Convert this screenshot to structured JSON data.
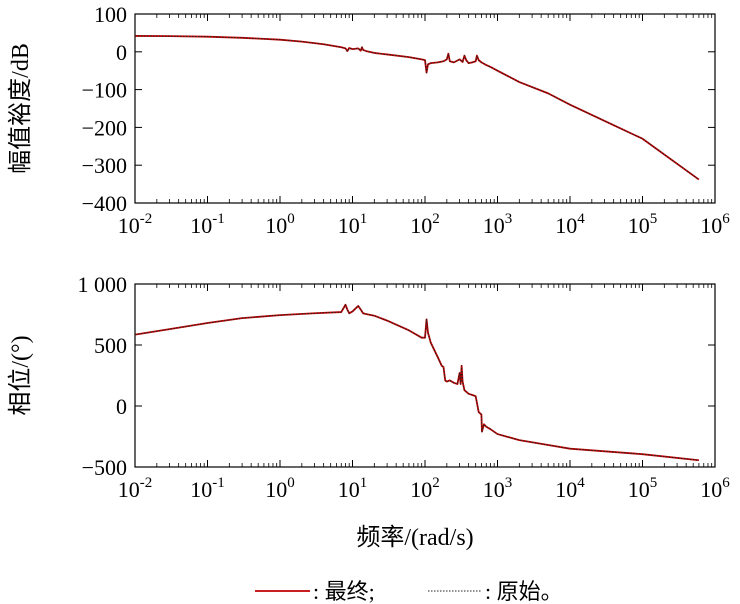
{
  "chart_data": [
    {
      "type": "line",
      "panel": "magnitude",
      "ylabel": "幅值裕度/dB",
      "xlabel": "",
      "xscale": "log",
      "xlim": [
        0.01,
        1000000
      ],
      "ylim": [
        -400,
        100
      ],
      "xticks": [
        0.01,
        0.1,
        1,
        10,
        100,
        1000,
        10000,
        100000,
        1000000
      ],
      "xtick_labels": [
        {
          "base": "10",
          "exp": "-2"
        },
        {
          "base": "10",
          "exp": "-1"
        },
        {
          "base": "10",
          "exp": "0"
        },
        {
          "base": "10",
          "exp": "1"
        },
        {
          "base": "10",
          "exp": "2"
        },
        {
          "base": "10",
          "exp": "3"
        },
        {
          "base": "10",
          "exp": "4"
        },
        {
          "base": "10",
          "exp": "5"
        },
        {
          "base": "10",
          "exp": "6"
        }
      ],
      "yticks": [
        100,
        0,
        -100,
        -200,
        -300,
        -400
      ],
      "ytick_labels": [
        "100",
        "0",
        "−100",
        "−200",
        "−300",
        "−400"
      ],
      "grid": false,
      "series": [
        {
          "name": "最终",
          "color": "#c00000",
          "style": "solid",
          "x": [
            0.01,
            0.03,
            0.1,
            0.3,
            1,
            2,
            4,
            7,
            8,
            8.5,
            9,
            10,
            12,
            13,
            13.5,
            14,
            16,
            20,
            30,
            60,
            90,
            100,
            105,
            110,
            120,
            150,
            180,
            200,
            210,
            220,
            250,
            300,
            330,
            350,
            370,
            400,
            450,
            500,
            520,
            550,
            600,
            700,
            800,
            1000,
            2000,
            5000,
            10000,
            100000,
            600000
          ],
          "y": [
            42,
            41.5,
            40,
            37,
            32,
            27,
            20,
            12,
            9,
            2,
            10,
            7,
            9,
            3,
            12,
            5,
            1,
            -3,
            -7,
            -14,
            -20,
            -22,
            -55,
            -33,
            -30,
            -28,
            -25,
            -20,
            -5,
            -25,
            -28,
            -20,
            -27,
            -10,
            -22,
            -30,
            -28,
            -25,
            -10,
            -22,
            -28,
            -35,
            -40,
            -50,
            -80,
            -110,
            -140,
            -230,
            -338
          ]
        },
        {
          "name": "原始",
          "color": "#222222",
          "style": "dotted",
          "x": [
            0.01,
            0.03,
            0.1,
            0.3,
            1,
            2,
            4,
            7,
            8,
            8.5,
            9,
            10,
            12,
            13,
            13.5,
            14,
            16,
            20,
            30,
            60,
            90,
            100,
            105,
            110,
            120,
            150,
            180,
            200,
            210,
            220,
            250,
            300,
            330,
            350,
            370,
            400,
            450,
            500,
            520,
            550,
            600,
            700,
            800,
            1000,
            2000,
            5000,
            10000,
            100000,
            600000
          ],
          "y": [
            42,
            41.5,
            40,
            37,
            32,
            27,
            20,
            12,
            9,
            2,
            10,
            7,
            9,
            3,
            12,
            5,
            1,
            -3,
            -7,
            -14,
            -20,
            -22,
            -55,
            -33,
            -30,
            -28,
            -25,
            -20,
            -5,
            -25,
            -28,
            -20,
            -27,
            -10,
            -22,
            -30,
            -28,
            -25,
            -10,
            -22,
            -28,
            -35,
            -40,
            -50,
            -80,
            -110,
            -140,
            -230,
            -338
          ]
        }
      ]
    },
    {
      "type": "line",
      "panel": "phase",
      "ylabel": "相位/(°)",
      "xlabel": "频率/(rad/s)",
      "xscale": "log",
      "xlim": [
        0.01,
        1000000
      ],
      "ylim": [
        -500,
        1000
      ],
      "xticks": [
        0.01,
        0.1,
        1,
        10,
        100,
        1000,
        10000,
        100000,
        1000000
      ],
      "xtick_labels": [
        {
          "base": "10",
          "exp": "-2"
        },
        {
          "base": "10",
          "exp": "-1"
        },
        {
          "base": "10",
          "exp": "0"
        },
        {
          "base": "10",
          "exp": "1"
        },
        {
          "base": "10",
          "exp": "2"
        },
        {
          "base": "10",
          "exp": "3"
        },
        {
          "base": "10",
          "exp": "4"
        },
        {
          "base": "10",
          "exp": "5"
        },
        {
          "base": "10",
          "exp": "6"
        }
      ],
      "yticks": [
        1000,
        500,
        0,
        -500
      ],
      "ytick_labels": [
        "1 000",
        "500",
        "0",
        "−500"
      ],
      "grid": false,
      "series": [
        {
          "name": "最终",
          "color": "#c00000",
          "style": "solid",
          "x": [
            0.01,
            0.03,
            0.1,
            0.3,
            1,
            3,
            7,
            8,
            8.5,
            9,
            10,
            12,
            13,
            14,
            15,
            20,
            30,
            60,
            90,
            100,
            105,
            110,
            120,
            150,
            170,
            180,
            190,
            200,
            220,
            250,
            280,
            300,
            310,
            320,
            330,
            350,
            400,
            450,
            500,
            550,
            600,
            610,
            650,
            700,
            800,
            1000,
            2000,
            5000,
            10000,
            100000,
            600000
          ],
          "y": [
            585,
            630,
            680,
            720,
            745,
            760,
            770,
            830,
            790,
            760,
            775,
            820,
            790,
            760,
            755,
            740,
            700,
            620,
            560,
            560,
            710,
            600,
            520,
            400,
            330,
            320,
            210,
            200,
            210,
            190,
            180,
            270,
            180,
            330,
            200,
            130,
            100,
            90,
            80,
            -50,
            -70,
            -210,
            -150,
            -170,
            -190,
            -230,
            -280,
            -320,
            -350,
            -395,
            -445
          ]
        },
        {
          "name": "原始",
          "color": "#222222",
          "style": "dotted",
          "x": [
            0.01,
            0.03,
            0.1,
            0.3,
            1,
            3,
            7,
            8,
            8.5,
            9,
            10,
            12,
            13,
            14,
            15,
            20,
            30,
            60,
            90,
            100,
            105,
            110,
            120,
            150,
            170,
            180,
            190,
            200,
            220,
            250,
            280,
            300,
            310,
            320,
            330,
            350,
            400,
            450,
            500,
            550,
            600,
            610,
            650,
            700,
            800,
            1000,
            2000,
            5000,
            10000,
            100000,
            600000
          ],
          "y": [
            585,
            630,
            680,
            720,
            745,
            760,
            770,
            830,
            790,
            760,
            775,
            820,
            790,
            760,
            755,
            740,
            700,
            620,
            560,
            560,
            710,
            600,
            520,
            400,
            330,
            320,
            210,
            200,
            210,
            190,
            180,
            270,
            180,
            330,
            200,
            130,
            100,
            90,
            80,
            -50,
            -70,
            -210,
            -150,
            -170,
            -190,
            -230,
            -280,
            -320,
            -350,
            -395,
            -445
          ]
        }
      ]
    }
  ],
  "legend": {
    "placement": "bottom-center",
    "items": [
      {
        "label": ": 最终;",
        "color": "#c00000",
        "style": "solid"
      },
      {
        "label": ": 原始。",
        "color": "#222222",
        "style": "dotted"
      }
    ]
  }
}
